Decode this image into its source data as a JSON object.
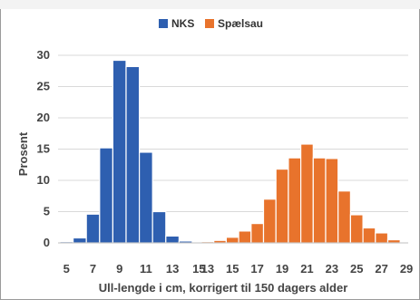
{
  "chart_data": {
    "type": "bar",
    "title": "",
    "xlabel": "Ull-lengde i cm, korrigert til 150 dagers alder",
    "ylabel": "Prosent",
    "ylim": [
      0,
      30
    ],
    "yticks": [
      0,
      5,
      10,
      15,
      20,
      25,
      30
    ],
    "grid": true,
    "legend": "top-center",
    "series": [
      {
        "name": "NKS",
        "color": "#2e5fb0",
        "x": [
          5,
          6,
          7,
          8,
          9,
          10,
          11,
          12,
          13,
          14,
          15
        ],
        "values": [
          0.2,
          0.8,
          4.6,
          15.2,
          29.2,
          28.2,
          14.5,
          5.0,
          1.1,
          0.3,
          0.1
        ]
      },
      {
        "name": "Spælsau",
        "color": "#e8732c",
        "x": [
          13,
          14,
          15,
          16,
          17,
          18,
          19,
          20,
          21,
          22,
          23,
          24,
          25,
          26,
          27,
          28,
          29
        ],
        "values": [
          0.2,
          0.4,
          0.9,
          1.9,
          3.1,
          7.0,
          11.8,
          13.6,
          15.8,
          13.6,
          13.5,
          8.3,
          4.5,
          2.4,
          1.6,
          0.5,
          0.1
        ]
      }
    ],
    "xtick_labels_nks": [
      "5",
      "7",
      "9",
      "11",
      "13",
      "15"
    ],
    "xtick_labels_spael": [
      "13",
      "15",
      "17",
      "19",
      "21",
      "23",
      "25",
      "27",
      "29"
    ]
  }
}
